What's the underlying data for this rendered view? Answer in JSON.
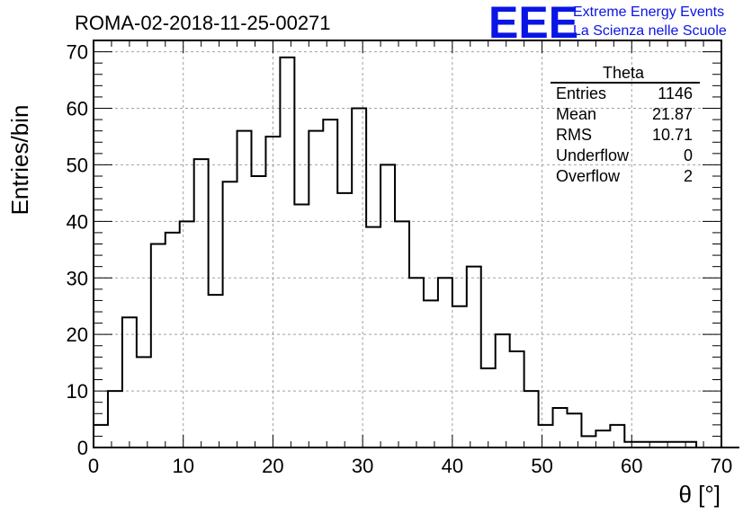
{
  "title": "ROMA-02-2018-11-25-00271",
  "logo": {
    "mark": "EEE",
    "line1": "Extreme Energy Events",
    "line2": "La Scienza nelle Scuole",
    "color": "#0a14e6"
  },
  "stats": {
    "header": "Theta",
    "rows": [
      {
        "label": "Entries",
        "value": "1146"
      },
      {
        "label": "Mean",
        "value": "21.87"
      },
      {
        "label": "RMS",
        "value": "10.71"
      },
      {
        "label": "Underflow",
        "value": "0"
      },
      {
        "label": "Overflow",
        "value": "2"
      }
    ]
  },
  "chart_data": {
    "type": "bar",
    "style": "step-histogram",
    "xlabel": "θ [°]",
    "ylabel": "Entries/bin",
    "xlim": [
      0,
      70
    ],
    "ylim": [
      0,
      72
    ],
    "xticks": [
      "0",
      "10",
      "20",
      "30",
      "40",
      "50",
      "60",
      "70"
    ],
    "yticks": [
      "0",
      "10",
      "20",
      "30",
      "40",
      "50",
      "60",
      "70"
    ],
    "grid": true,
    "bin_width": 1.6,
    "bin_start": 0,
    "values": [
      4,
      10,
      23,
      16,
      36,
      38,
      40,
      51,
      27,
      47,
      56,
      48,
      55,
      69,
      43,
      56,
      58,
      45,
      60,
      39,
      50,
      40,
      30,
      26,
      30,
      25,
      32,
      14,
      20,
      17,
      10,
      4,
      7,
      6,
      2,
      3,
      4,
      1,
      1,
      1,
      1,
      1,
      0,
      0,
      0
    ]
  }
}
